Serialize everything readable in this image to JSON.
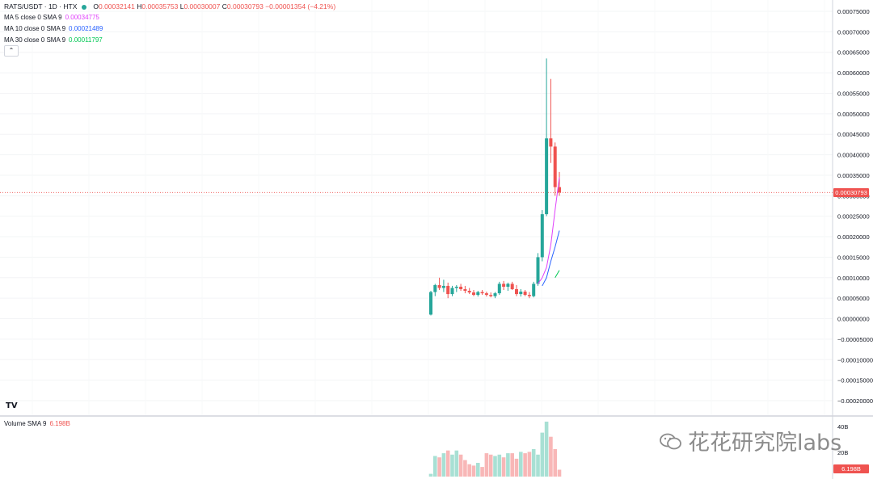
{
  "symbol": {
    "title": "RATS/USDT · 1D · HTX",
    "open_label": "O",
    "open": "0.00032141",
    "high_label": "H",
    "high": "0.00035753",
    "low_label": "L",
    "low": "0.00030007",
    "close_label": "C",
    "close": "0.00030793",
    "change": "−0.00001354 (−4.21%)"
  },
  "indicators": [
    {
      "label": "MA 5 close 0 SMA 9",
      "value": "0.00034775",
      "color": "#e040fb"
    },
    {
      "label": "MA 10 close 0 SMA 9",
      "value": "0.00021489",
      "color": "#2962ff"
    },
    {
      "label": "MA 30 close 0 SMA 9",
      "value": "0.00011797",
      "color": "#00e676"
    }
  ],
  "collapse_icon": "chevron-up-icon",
  "volume": {
    "label": "Volume SMA 9",
    "value": "6.198B",
    "axis": [
      "40B",
      "20B"
    ],
    "tag": "6.198B"
  },
  "price_axis": [
    "0.00075000",
    "0.00070000",
    "0.00065000",
    "0.00060000",
    "0.00055000",
    "0.00050000",
    "0.00045000",
    "0.00040000",
    "0.00035000",
    "0.00030000",
    "0.00025000",
    "0.00020000",
    "0.00015000",
    "0.00010000",
    "0.00005000",
    "0.00000000",
    "−0.00005000",
    "−0.00010000",
    "−0.00015000",
    "−0.00020000"
  ],
  "last_price_tag": "0.00030793",
  "watermark": "花花研究院labs",
  "logo": "TV",
  "colors": {
    "up": "#26a69a",
    "down": "#ef5350",
    "up_vol": "#a8e0d4",
    "down_vol": "#f8b7b7"
  },
  "chart_data": {
    "type": "candlestick",
    "y_range": [
      -0.0002,
      0.00075
    ],
    "candles": [
      {
        "o": 1e-05,
        "h": 6.8e-05,
        "l": 8e-06,
        "c": 6.5e-05,
        "v": 2
      },
      {
        "o": 6.5e-05,
        "h": 8.5e-05,
        "l": 5.5e-05,
        "c": 8.2e-05,
        "v": 15
      },
      {
        "o": 8.2e-05,
        "h": 0.0001,
        "l": 7e-05,
        "c": 7.5e-05,
        "v": 14
      },
      {
        "o": 7.5e-05,
        "h": 9.5e-05,
        "l": 6.5e-05,
        "c": 8e-05,
        "v": 17
      },
      {
        "o": 8e-05,
        "h": 8.8e-05,
        "l": 5e-05,
        "c": 6e-05,
        "v": 19
      },
      {
        "o": 6e-05,
        "h": 8e-05,
        "l": 5.5e-05,
        "c": 7.5e-05,
        "v": 16
      },
      {
        "o": 7.5e-05,
        "h": 8.2e-05,
        "l": 6.5e-05,
        "c": 7.8e-05,
        "v": 19
      },
      {
        "o": 7.8e-05,
        "h": 8.5e-05,
        "l": 6.8e-05,
        "c": 7.2e-05,
        "v": 16
      },
      {
        "o": 7.2e-05,
        "h": 8e-05,
        "l": 6.2e-05,
        "c": 6.8e-05,
        "v": 12
      },
      {
        "o": 6.8e-05,
        "h": 7.5e-05,
        "l": 6e-05,
        "c": 6.4e-05,
        "v": 9
      },
      {
        "o": 6.4e-05,
        "h": 7e-05,
        "l": 5.5e-05,
        "c": 5.8e-05,
        "v": 8
      },
      {
        "o": 5.8e-05,
        "h": 6.8e-05,
        "l": 5.4e-05,
        "c": 6.5e-05,
        "v": 10
      },
      {
        "o": 6.5e-05,
        "h": 7e-05,
        "l": 5.8e-05,
        "c": 6.2e-05,
        "v": 7
      },
      {
        "o": 6.2e-05,
        "h": 6.6e-05,
        "l": 5.4e-05,
        "c": 5.8e-05,
        "v": 17
      },
      {
        "o": 5.8e-05,
        "h": 6.4e-05,
        "l": 5.2e-05,
        "c": 5.5e-05,
        "v": 16
      },
      {
        "o": 5.5e-05,
        "h": 6.5e-05,
        "l": 5e-05,
        "c": 6.2e-05,
        "v": 15
      },
      {
        "o": 6.2e-05,
        "h": 9e-05,
        "l": 5.8e-05,
        "c": 8.5e-05,
        "v": 16
      },
      {
        "o": 8.5e-05,
        "h": 9.2e-05,
        "l": 7e-05,
        "c": 7.8e-05,
        "v": 14
      },
      {
        "o": 7.8e-05,
        "h": 8.8e-05,
        "l": 6.8e-05,
        "c": 8.5e-05,
        "v": 17
      },
      {
        "o": 8.5e-05,
        "h": 9e-05,
        "l": 7e-05,
        "c": 7.2e-05,
        "v": 17
      },
      {
        "o": 7.2e-05,
        "h": 8.2e-05,
        "l": 5.5e-05,
        "c": 6e-05,
        "v": 13
      },
      {
        "o": 6e-05,
        "h": 7.2e-05,
        "l": 5.4e-05,
        "c": 6.6e-05,
        "v": 18
      },
      {
        "o": 6.6e-05,
        "h": 7e-05,
        "l": 5.5e-05,
        "c": 5.8e-05,
        "v": 17
      },
      {
        "o": 5.8e-05,
        "h": 6.5e-05,
        "l": 5e-05,
        "c": 5.5e-05,
        "v": 18
      },
      {
        "o": 5.5e-05,
        "h": 9e-05,
        "l": 5.2e-05,
        "c": 8.5e-05,
        "v": 20
      },
      {
        "o": 8.5e-05,
        "h": 0.00016,
        "l": 8e-05,
        "c": 0.00015,
        "v": 16
      },
      {
        "o": 0.00015,
        "h": 0.000265,
        "l": 0.00014,
        "c": 0.000255,
        "v": 32
      },
      {
        "o": 0.000255,
        "h": 0.000635,
        "l": 0.00025,
        "c": 0.00044,
        "v": 40
      },
      {
        "o": 0.00044,
        "h": 0.000585,
        "l": 0.00038,
        "c": 0.00042,
        "v": 29
      },
      {
        "o": 0.00042,
        "h": 0.00043,
        "l": 0.0003,
        "c": 0.000321,
        "v": 20
      },
      {
        "o": 0.000321,
        "h": 0.000358,
        "l": 0.0003,
        "c": 0.000308,
        "v": 5
      }
    ],
    "ma5": [
      8.5e-05,
      0.0001,
      0.000125,
      0.00018,
      0.000265,
      0.000345
    ],
    "ma10": [
      8e-05,
      0.0001,
      0.00014,
      0.000175,
      0.000215
    ],
    "ma30": [
      0.0001,
      0.000118
    ],
    "volume_max_label": "40B"
  }
}
